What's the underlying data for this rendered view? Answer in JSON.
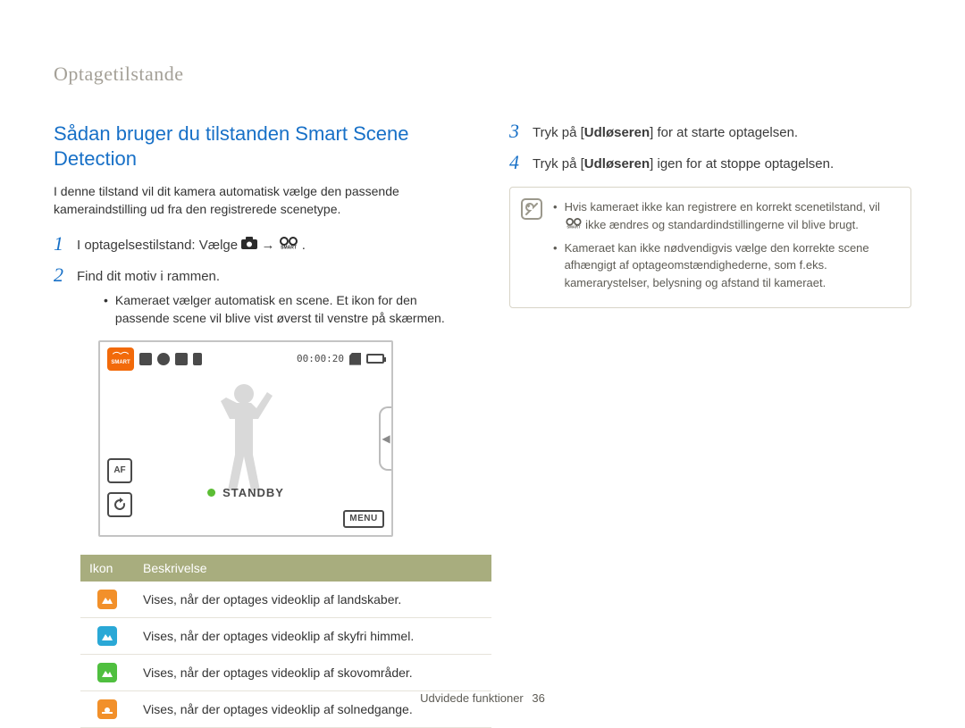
{
  "breadcrumb": "Optagetilstande",
  "section_title": "Sådan bruger du tilstanden Smart Scene Detection",
  "intro": "I denne tilstand vil dit kamera automatisk vælge den passende kameraindstilling ud fra den registrerede scenetype.",
  "steps_left": [
    {
      "num": "1",
      "before": "I optagelsestilstand: Vælge ",
      "after": " → ",
      "tail": ".",
      "has_icons": true
    },
    {
      "num": "2",
      "before": "Find dit motiv i rammen.",
      "after": "",
      "tail": "",
      "has_icons": false
    }
  ],
  "bullet_left": "Kameraet vælger automatisk en scene. Et ikon for den passende scene vil blive vist øverst til venstre på skærmen.",
  "camera": {
    "smart_label": "SMART",
    "time": "00:00:20",
    "af_label": "AF",
    "standby": "STANDBY",
    "menu": "MENU"
  },
  "table": {
    "headers": {
      "icon": "Ikon",
      "desc": "Beskrivelse"
    },
    "rows": [
      {
        "color": "#f2902a",
        "shape": "mountain",
        "desc": "Vises, når der optages videoklip af landskaber."
      },
      {
        "color": "#2aa8d6",
        "shape": "mountain",
        "desc": "Vises, når der optages videoklip af skyfri himmel."
      },
      {
        "color": "#4fbf3f",
        "shape": "mountain",
        "desc": "Vises, når der optages videoklip af skovområder."
      },
      {
        "color": "#f2902a",
        "shape": "sunset",
        "desc": "Vises, når der optages videoklip af solnedgange."
      }
    ]
  },
  "steps_right": [
    {
      "num": "3",
      "pre": "Tryk på [",
      "bold": "Udløseren",
      "post": "] for at starte optagelsen."
    },
    {
      "num": "4",
      "pre": "Tryk på [",
      "bold": "Udløseren",
      "post": "] igen for at stoppe optagelsen."
    }
  ],
  "note": {
    "items": [
      {
        "pre": "Hvis kameraet ikke kan registrere en korrekt scenetilstand, vil ",
        "post": " ikke ændres og standardindstillingerne vil blive brugt.",
        "has_icon": true
      },
      {
        "pre": "Kameraet kan ikke nødvendigvis vælge den korrekte scene afhængigt af optageomstændighederne, som f.eks. kamerarystelser, belysning og afstand til kameraet.",
        "post": "",
        "has_icon": false
      }
    ]
  },
  "footer": {
    "text": "Udvidede funktioner",
    "page": "36"
  },
  "colors": {
    "heading": "#1770c7",
    "table_header_bg": "#a8ad7e",
    "note_border": "#d8d4c7"
  }
}
